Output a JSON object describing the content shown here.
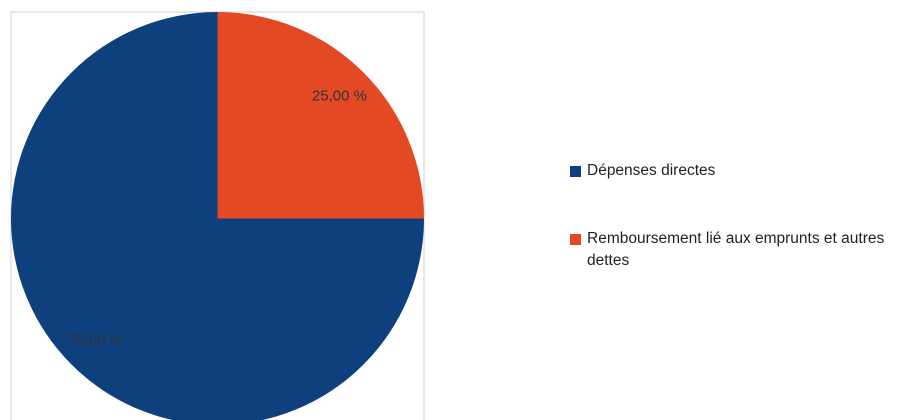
{
  "chart_data": {
    "type": "pie",
    "categories": [
      "Dépenses directes",
      "Remboursement lié aux emprunts et autres dettes"
    ],
    "values": [
      75,
      25
    ],
    "value_labels": [
      "75,00 %",
      "25,00 %"
    ],
    "colors": [
      "#0e407d",
      "#e34a24"
    ],
    "legend": "right"
  }
}
